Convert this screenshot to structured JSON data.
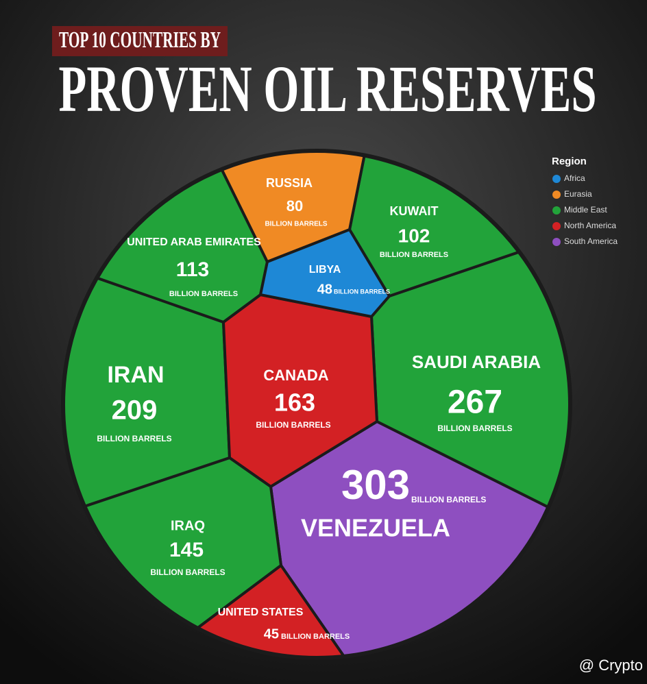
{
  "chart_data": {
    "type": "voronoi",
    "title": "TOP 10 COUNTRIES BY",
    "subtitle": "PROVEN OIL RESERVES",
    "unit": "BILLION BARRELS",
    "legend_title": "Region",
    "credit": "@ Crypto",
    "categories": [
      "VENEZUELA",
      "SAUDI ARABIA",
      "IRAN",
      "CANADA",
      "IRAQ",
      "UNITED ARAB EMIRATES",
      "KUWAIT",
      "RUSSIA",
      "LIBYA",
      "UNITED STATES"
    ],
    "series": [
      {
        "name": "Africa",
        "color": "#1e88d6",
        "values": [
          null,
          null,
          null,
          null,
          null,
          null,
          null,
          null,
          48,
          null
        ]
      },
      {
        "name": "Eurasia",
        "color": "#f08a24",
        "values": [
          null,
          null,
          null,
          null,
          null,
          null,
          null,
          80,
          null,
          null
        ]
      },
      {
        "name": "Middle East",
        "color": "#22a33a",
        "values": [
          null,
          267,
          209,
          null,
          145,
          113,
          102,
          null,
          null,
          null
        ]
      },
      {
        "name": "North America",
        "color": "#d32124",
        "values": [
          null,
          null,
          null,
          163,
          null,
          null,
          null,
          null,
          null,
          45
        ]
      },
      {
        "name": "South America",
        "color": "#8e4fc0",
        "values": [
          303,
          null,
          null,
          null,
          null,
          null,
          null,
          null,
          null,
          null
        ]
      }
    ]
  }
}
